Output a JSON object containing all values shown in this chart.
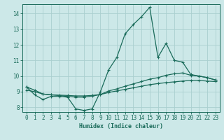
{
  "xlabel": "Humidex (Indice chaleur)",
  "bg_color": "#cce8e8",
  "grid_color": "#aacfcf",
  "line_color": "#1a6b5a",
  "xlim": [
    -0.5,
    23.5
  ],
  "ylim": [
    7.7,
    14.6
  ],
  "xticks": [
    0,
    1,
    2,
    3,
    4,
    5,
    6,
    7,
    8,
    9,
    10,
    11,
    12,
    13,
    14,
    15,
    16,
    17,
    18,
    19,
    20,
    21,
    22,
    23
  ],
  "yticks": [
    8,
    9,
    10,
    11,
    12,
    13,
    14
  ],
  "line1_x": [
    0,
    1,
    2,
    3,
    4,
    5,
    6,
    7,
    8,
    9,
    10,
    11,
    12,
    13,
    14,
    15,
    16,
    17,
    18,
    19,
    20,
    21,
    22,
    23
  ],
  "line1_y": [
    9.3,
    8.8,
    8.5,
    8.7,
    8.7,
    8.65,
    7.9,
    7.8,
    7.9,
    9.0,
    10.4,
    11.2,
    12.7,
    13.3,
    13.8,
    14.4,
    11.2,
    12.1,
    11.0,
    10.9,
    10.1,
    10.0,
    9.9,
    9.75
  ],
  "line2_x": [
    0,
    1,
    2,
    3,
    4,
    5,
    6,
    7,
    8,
    9,
    10,
    11,
    12,
    13,
    14,
    15,
    16,
    17,
    18,
    19,
    20,
    21,
    22,
    23
  ],
  "line2_y": [
    9.3,
    9.1,
    8.85,
    8.8,
    8.75,
    8.7,
    8.65,
    8.65,
    8.72,
    8.82,
    9.05,
    9.18,
    9.35,
    9.5,
    9.65,
    9.8,
    9.9,
    10.05,
    10.15,
    10.2,
    10.05,
    10.0,
    9.9,
    9.75
  ],
  "line3_x": [
    0,
    1,
    2,
    3,
    4,
    5,
    6,
    7,
    8,
    9,
    10,
    11,
    12,
    13,
    14,
    15,
    16,
    17,
    18,
    19,
    20,
    21,
    22,
    23
  ],
  "line3_y": [
    9.1,
    9.0,
    8.85,
    8.8,
    8.78,
    8.76,
    8.73,
    8.73,
    8.76,
    8.82,
    8.95,
    9.05,
    9.15,
    9.25,
    9.35,
    9.45,
    9.52,
    9.58,
    9.63,
    9.68,
    9.72,
    9.72,
    9.68,
    9.65
  ],
  "marker": "+",
  "markersize": 3,
  "linewidth": 0.9
}
